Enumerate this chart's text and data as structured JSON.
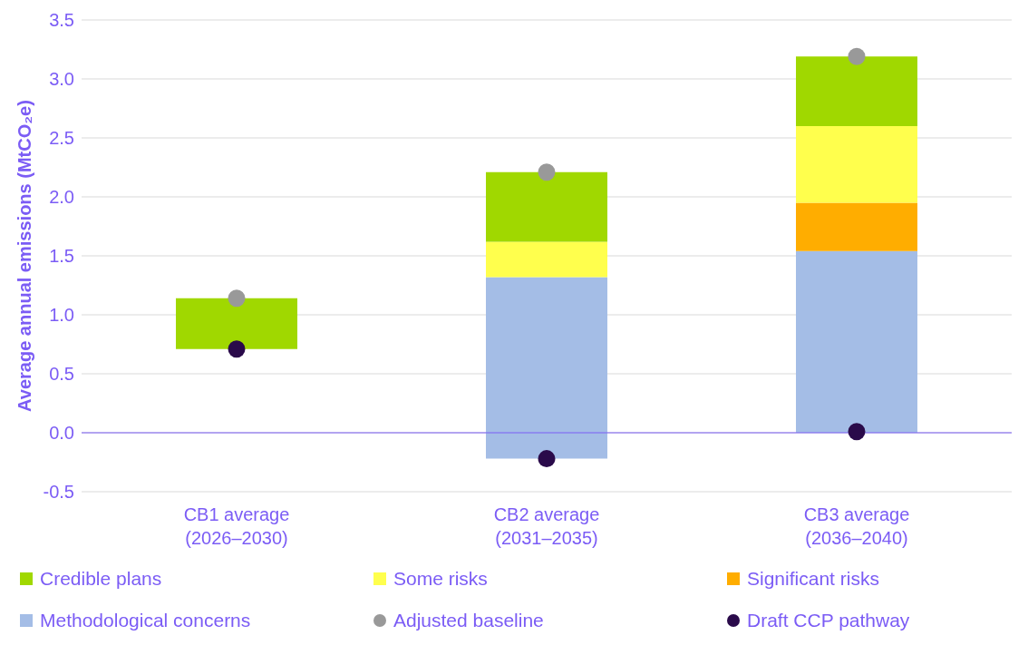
{
  "chart_data": {
    "type": "bar",
    "ylabel": "Average annual emissions (MtCO₂e)",
    "categories": [
      "CB1 average\n(2026–2030)",
      "CB2 average\n(2031–2035)",
      "CB3 average\n(2036–2040)"
    ],
    "series": [
      {
        "name": "Methodological concerns",
        "color": "#a4bde6",
        "base": [
          null,
          -0.22,
          0
        ],
        "values": [
          null,
          1.54,
          1.54
        ]
      },
      {
        "name": "Significant risks",
        "color": "#ffad00",
        "base": [
          null,
          null,
          1.54
        ],
        "values": [
          null,
          null,
          0.41
        ]
      },
      {
        "name": "Some risks",
        "color": "#ffff4d",
        "base": [
          null,
          1.32,
          1.95
        ],
        "values": [
          null,
          0.3,
          0.65
        ]
      },
      {
        "name": "Credible plans",
        "color": "#a0d800",
        "base": [
          0.71,
          1.62,
          2.6
        ],
        "values": [
          0.43,
          0.59,
          0.59
        ]
      },
      {
        "name": "Adjusted baseline",
        "type": "scatter",
        "marker": "circle",
        "color": "#999999",
        "x": [
          "CB1 average\n(2026–2030)",
          "CB2 average\n(2031–2035)",
          "CB3 average\n(2036–2040)"
        ],
        "values": [
          1.14,
          2.21,
          3.19
        ]
      },
      {
        "name": "Draft CCP pathway",
        "type": "scatter",
        "marker": "circle",
        "color": "#2a0a4a",
        "x": [
          "CB1 average\n(2026–2030)",
          "CB2 average\n(2031–2035)",
          "CB3 average\n(2036–2040)"
        ],
        "values": [
          0.71,
          -0.22,
          0.01
        ]
      }
    ],
    "ylim": [
      -0.5,
      3.5
    ],
    "yticks": [
      {
        "value": -0.5,
        "label": "-0.5"
      },
      {
        "value": 0,
        "label": "0.0"
      },
      {
        "value": 0.5,
        "label": "0.5"
      },
      {
        "value": 1,
        "label": "1.0"
      },
      {
        "value": 1.5,
        "label": "1.5"
      },
      {
        "value": 2,
        "label": "2.0"
      },
      {
        "value": 2.5,
        "label": "2.5"
      },
      {
        "value": 3,
        "label": "3.0"
      },
      {
        "value": 3.5,
        "label": "3.5"
      }
    ],
    "ref_lines": [
      {
        "axis": "y",
        "value": 0,
        "color": "#7b5cf5"
      }
    ],
    "grid": "y",
    "legend": "bottom"
  }
}
